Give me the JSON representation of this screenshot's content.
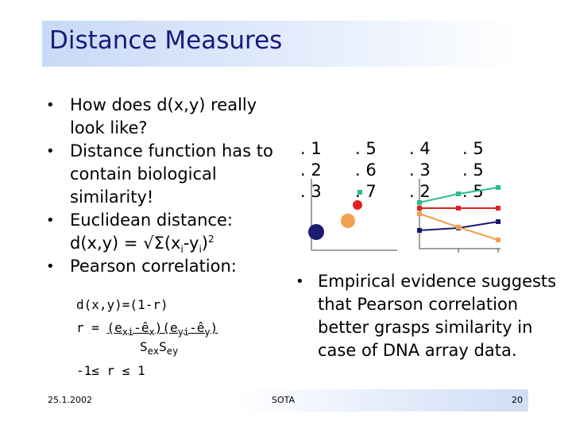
{
  "title": "Distance Measures",
  "bullets": {
    "b1": "How does d(x,y) really look like?",
    "b2": "Distance function has to contain biological similarity!",
    "b3_line1": "Euclidean distance:",
    "b3_pre": "d(x,y) = √Σ(x",
    "b3_sub1": "i",
    "b3_mid": "-y",
    "b3_sub2": "i",
    "b3_post": ")",
    "b3_sup": "2",
    "b4": "Pearson correlation:"
  },
  "formula": {
    "line1": "d(x,y)=(1-r)",
    "line2_pre": "r = ",
    "e1": "(e",
    "e1_sub": "xi",
    "e2": "-ê",
    "e2_sub": "x",
    "e3": ")(e",
    "e3_sub": "yi",
    "e4": "-ê",
    "e4_sub": "y",
    "e5": ")",
    "denom_s1": "S",
    "denom_sub1": "ex",
    "denom_s2": "S",
    "denom_sub2": "ey",
    "line4": "-1≤ r ≤ 1"
  },
  "columns": [
    {
      "v1": ". 1",
      "v2": ". 2",
      "v3": ". 3"
    },
    {
      "v1": ". 5",
      "v2": ". 6",
      "v3": ". 7"
    },
    {
      "v1": ". 4",
      "v2": ". 3",
      "v3": ". 2"
    },
    {
      "v1": ". 5",
      "v2": ". 5",
      "v3": ". 5"
    }
  ],
  "colors": {
    "green": "#2bbf8a",
    "red": "#e02020",
    "orange": "#f0a050",
    "navy": "#1a1a6e",
    "title": "#1a1a7a"
  },
  "empirical": "Empirical evidence suggests that Pearson correlation better grasps similarity in case of DNA array data.",
  "footer": {
    "date": "25.1.2002",
    "center": "SOTA",
    "page": "20"
  }
}
